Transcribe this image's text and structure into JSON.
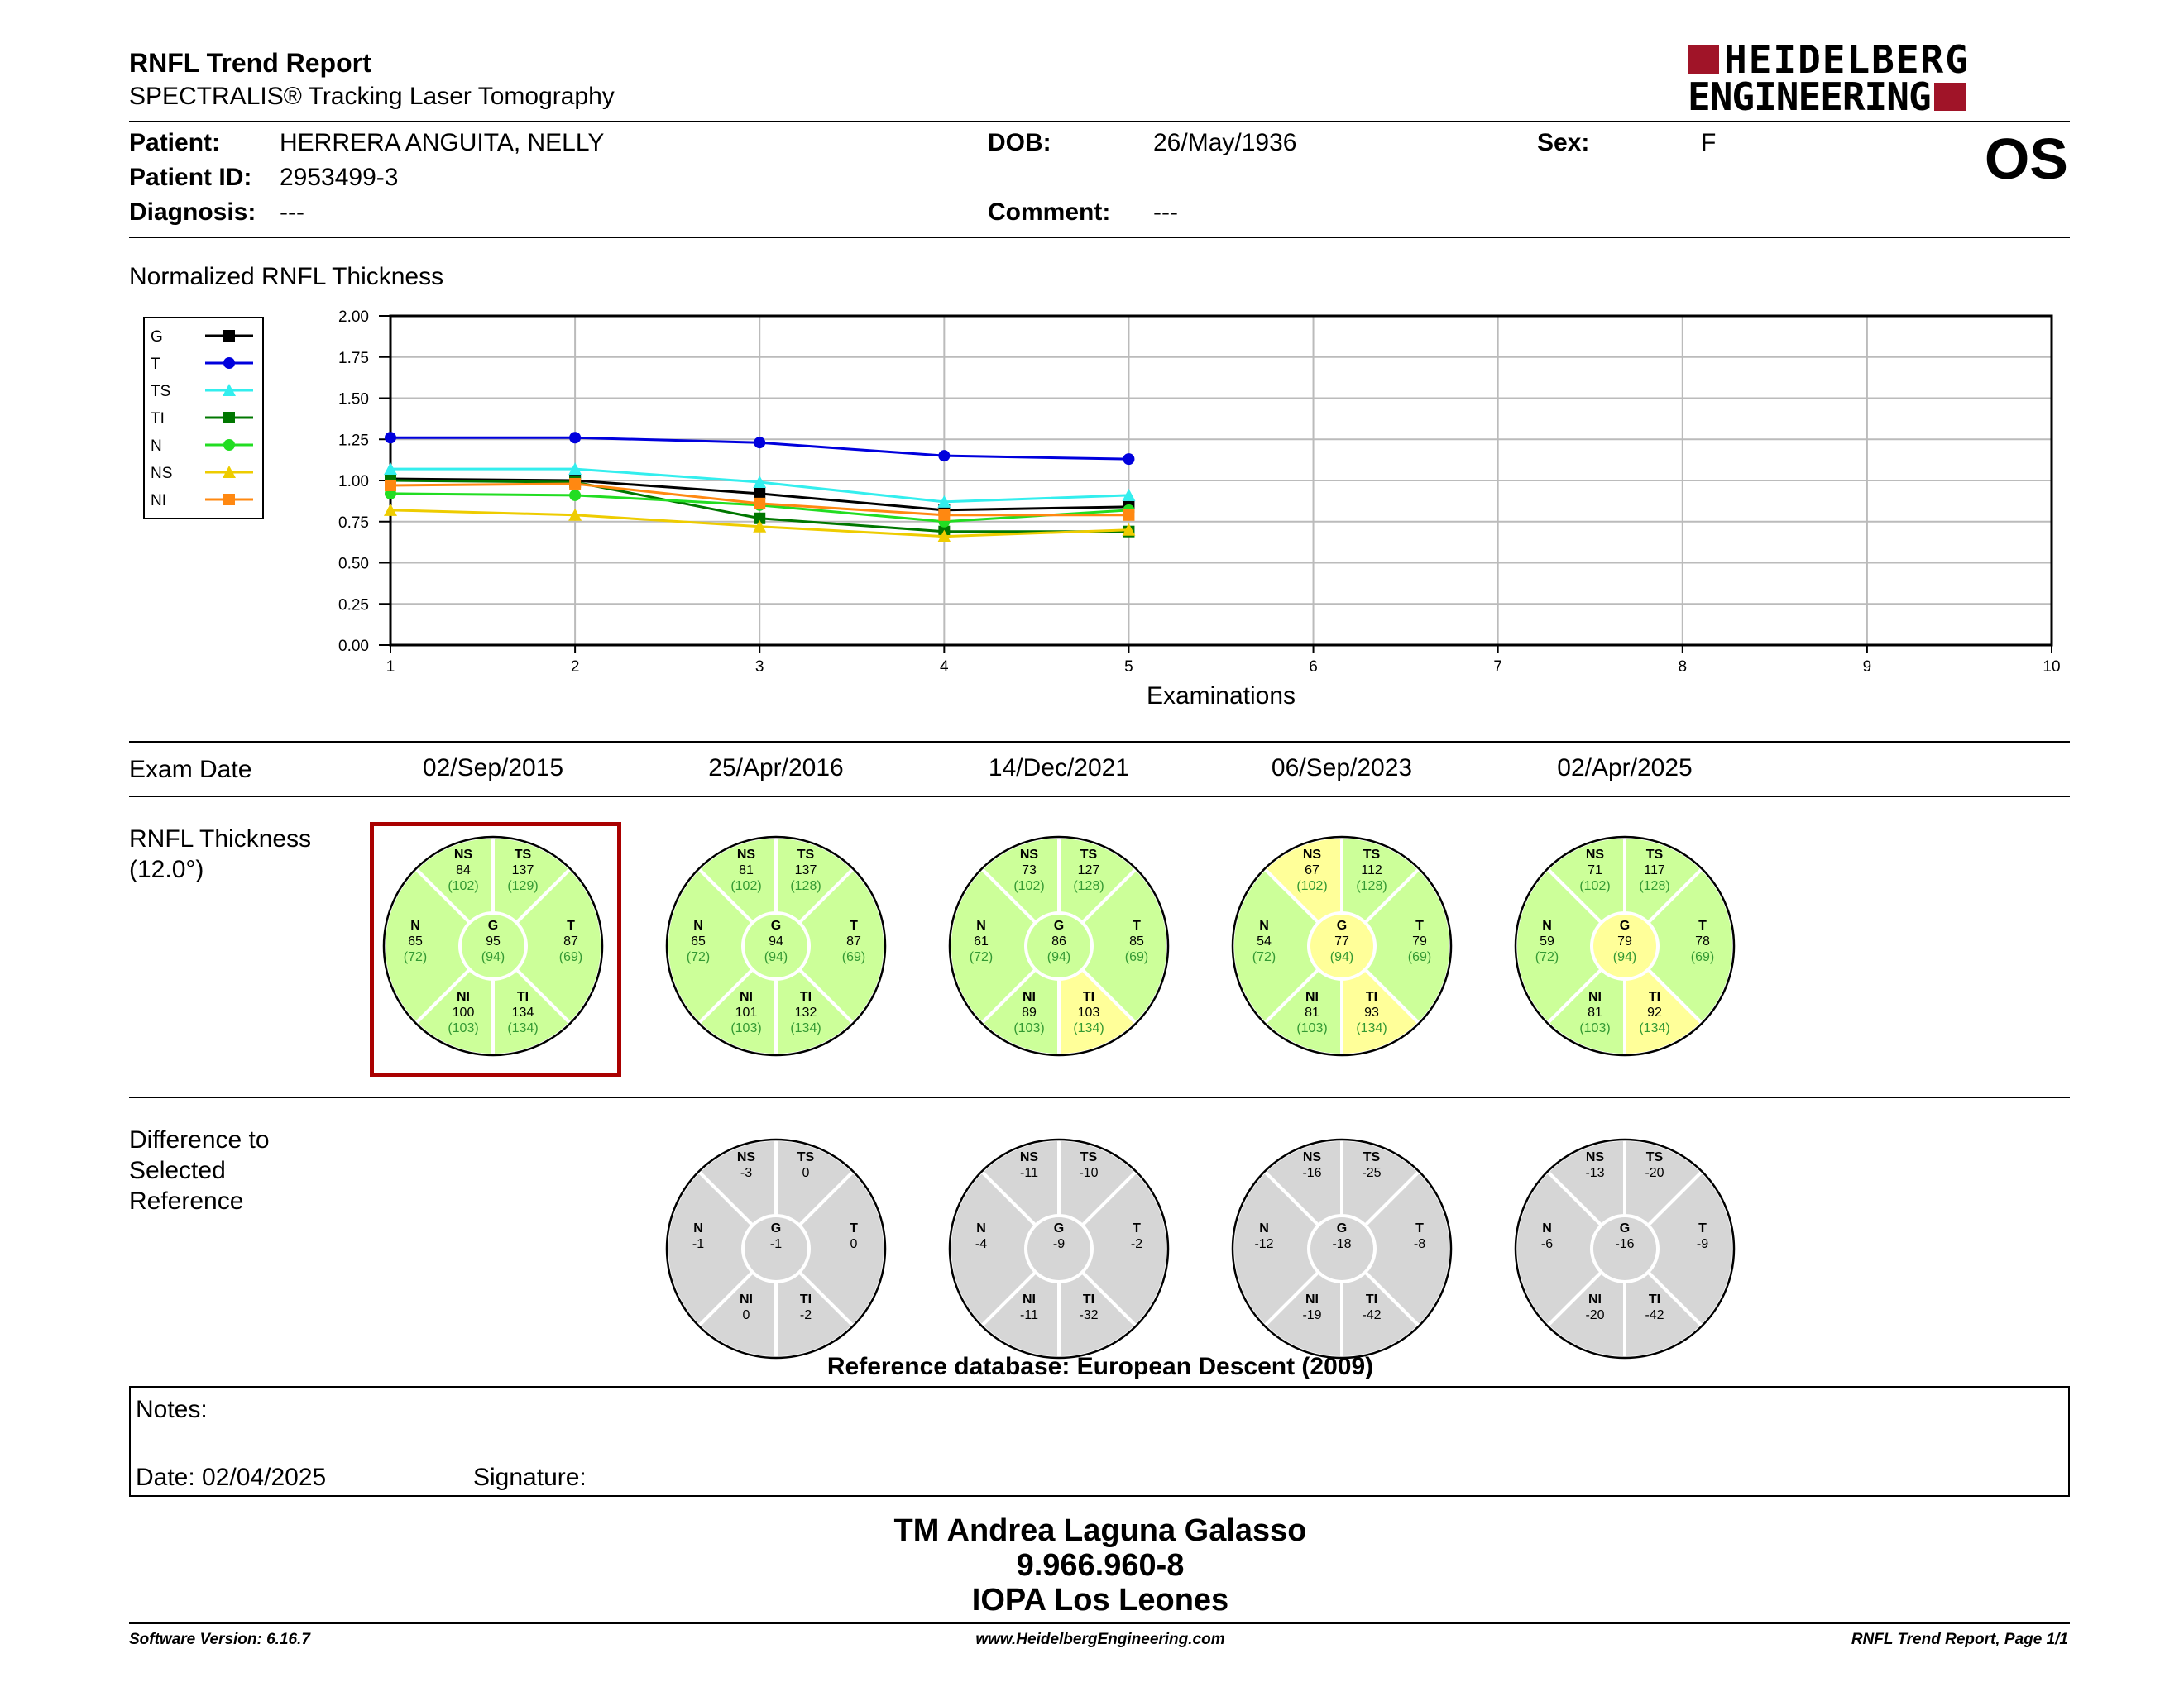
{
  "header": {
    "title": "RNFL Trend Report",
    "subtitle": "SPECTRALIS® Tracking Laser Tomography",
    "brand_line1": "HEIDELBERG",
    "brand_line2": "ENGINEERING",
    "eye": "OS"
  },
  "patient": {
    "patient_label": "Patient:",
    "patient_value": "HERRERA ANGUITA, NELLY",
    "id_label": "Patient ID:",
    "id_value": "2953499-3",
    "diagnosis_label": "Diagnosis:",
    "diagnosis_value": "---",
    "dob_label": "DOB:",
    "dob_value": "26/May/1936",
    "comment_label": "Comment:",
    "comment_value": "---",
    "sex_label": "Sex:",
    "sex_value": "F"
  },
  "chart_title": "Normalized RNFL Thickness",
  "chart_data": {
    "type": "line",
    "xlabel": "Examinations",
    "ylabel": "",
    "x_ticks": [
      1,
      2,
      3,
      4,
      5,
      6,
      7,
      8,
      9,
      10
    ],
    "y_ticks": [
      "0.00",
      "0.25",
      "0.50",
      "0.75",
      "1.00",
      "1.25",
      "1.50",
      "1.75",
      "2.00"
    ],
    "xlim": [
      1,
      10
    ],
    "ylim": [
      0,
      2
    ],
    "grid": true,
    "legend_position": "left",
    "x": [
      1,
      2,
      3,
      4,
      5
    ],
    "series": [
      {
        "name": "G",
        "color": "#000000",
        "marker": "square",
        "values": [
          1.01,
          1.0,
          0.92,
          0.82,
          0.84
        ]
      },
      {
        "name": "T",
        "color": "#0000dd",
        "marker": "circle",
        "values": [
          1.26,
          1.26,
          1.23,
          1.15,
          1.13
        ]
      },
      {
        "name": "TS",
        "color": "#33eeee",
        "marker": "triangle",
        "values": [
          1.07,
          1.07,
          0.99,
          0.87,
          0.91
        ]
      },
      {
        "name": "TI",
        "color": "#007700",
        "marker": "square",
        "values": [
          1.0,
          0.99,
          0.77,
          0.69,
          0.69
        ]
      },
      {
        "name": "N",
        "color": "#22dd22",
        "marker": "circle",
        "values": [
          0.92,
          0.91,
          0.85,
          0.75,
          0.82
        ]
      },
      {
        "name": "NS",
        "color": "#eecc00",
        "marker": "triangle",
        "values": [
          0.82,
          0.79,
          0.72,
          0.66,
          0.7
        ]
      },
      {
        "name": "NI",
        "color": "#ff8811",
        "marker": "square",
        "values": [
          0.97,
          0.98,
          0.86,
          0.79,
          0.79
        ]
      }
    ]
  },
  "exam_date_label": "Exam Date",
  "exam_dates": [
    "02/Sep/2015",
    "25/Apr/2016",
    "14/Dec/2021",
    "06/Sep/2023",
    "02/Apr/2025"
  ],
  "thickness_label_1": "RNFL Thickness",
  "thickness_label_2": "(12.0°)",
  "colors": {
    "normal": "#ccff99",
    "borderline": "#ffff99",
    "difference": "#d6d6d6",
    "selected_frame": "#aa0000"
  },
  "thickness": [
    {
      "NS": [
        "84",
        "(102)"
      ],
      "TS": [
        "137",
        "(129)"
      ],
      "N": [
        "65",
        "(72)"
      ],
      "G": [
        "95",
        "(94)"
      ],
      "T": [
        "87",
        "(69)"
      ],
      "NI": [
        "100",
        "(103)"
      ],
      "TI": [
        "134",
        "(134)"
      ],
      "status": {}
    },
    {
      "NS": [
        "81",
        "(102)"
      ],
      "TS": [
        "137",
        "(128)"
      ],
      "N": [
        "65",
        "(72)"
      ],
      "G": [
        "94",
        "(94)"
      ],
      "T": [
        "87",
        "(69)"
      ],
      "NI": [
        "101",
        "(103)"
      ],
      "TI": [
        "132",
        "(134)"
      ],
      "status": {}
    },
    {
      "NS": [
        "73",
        "(102)"
      ],
      "TS": [
        "127",
        "(128)"
      ],
      "N": [
        "61",
        "(72)"
      ],
      "G": [
        "86",
        "(94)"
      ],
      "T": [
        "85",
        "(69)"
      ],
      "NI": [
        "89",
        "(103)"
      ],
      "TI": [
        "103",
        "(134)"
      ],
      "status": {
        "TI": "borderline"
      }
    },
    {
      "NS": [
        "67",
        "(102)"
      ],
      "TS": [
        "112",
        "(128)"
      ],
      "N": [
        "54",
        "(72)"
      ],
      "G": [
        "77",
        "(94)"
      ],
      "T": [
        "79",
        "(69)"
      ],
      "NI": [
        "81",
        "(103)"
      ],
      "TI": [
        "93",
        "(134)"
      ],
      "status": {
        "NS": "borderline",
        "G": "borderline",
        "TI": "borderline"
      }
    },
    {
      "NS": [
        "71",
        "(102)"
      ],
      "TS": [
        "117",
        "(128)"
      ],
      "N": [
        "59",
        "(72)"
      ],
      "G": [
        "79",
        "(94)"
      ],
      "T": [
        "78",
        "(69)"
      ],
      "NI": [
        "81",
        "(103)"
      ],
      "TI": [
        "92",
        "(134)"
      ],
      "status": {
        "G": "borderline",
        "TI": "borderline"
      }
    }
  ],
  "difference_label": [
    "Difference to",
    "Selected",
    "Reference"
  ],
  "difference": [
    null,
    {
      "NS": "-3",
      "TS": "0",
      "N": "-1",
      "G": "-1",
      "T": "0",
      "NI": "0",
      "TI": "-2"
    },
    {
      "NS": "-11",
      "TS": "-10",
      "N": "-4",
      "G": "-9",
      "T": "-2",
      "NI": "-11",
      "TI": "-32"
    },
    {
      "NS": "-16",
      "TS": "-25",
      "N": "-12",
      "G": "-18",
      "T": "-8",
      "NI": "-19",
      "TI": "-42"
    },
    {
      "NS": "-13",
      "TS": "-20",
      "N": "-6",
      "G": "-16",
      "T": "-9",
      "NI": "-20",
      "TI": "-42"
    }
  ],
  "reference_db": "Reference database: European Descent (2009)",
  "notes": {
    "label": "Notes:",
    "date": "Date: 02/04/2025",
    "signature": "Signature:"
  },
  "signoff": [
    "TM Andrea Laguna Galasso",
    "9.966.960-8",
    "IOPA Los Leones"
  ],
  "footer": {
    "version": "Software Version: 6.16.7",
    "url": "www.HeidelbergEngineering.com",
    "page": "RNFL Trend Report, Page 1/1"
  }
}
